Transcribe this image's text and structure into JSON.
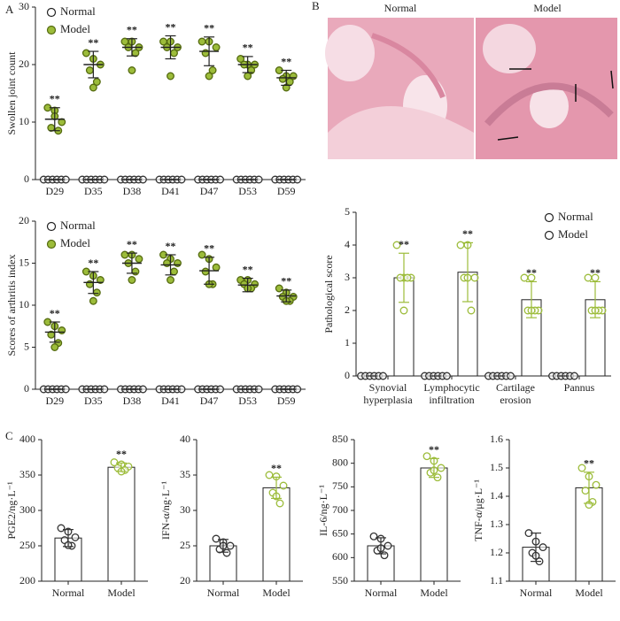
{
  "panel_labels": [
    "A",
    "B",
    "C"
  ],
  "histology": {
    "labels": [
      "Normal",
      "Model"
    ]
  },
  "chart_data": [
    {
      "type": "scatter",
      "ylabel": "Swollen joint count",
      "legend": "upper left",
      "annotation": "**",
      "categories": [
        "D29",
        "D35",
        "D38",
        "D41",
        "D47",
        "D53",
        "D59"
      ],
      "ylim": [
        0,
        30
      ],
      "yticks": [
        0,
        10,
        20,
        30
      ],
      "series": [
        {
          "name": "Normal",
          "color": "#333333",
          "filled": false,
          "values": [
            0,
            0,
            0,
            0,
            0,
            0,
            0
          ],
          "errors": [
            0,
            0,
            0,
            0,
            0,
            0,
            0
          ],
          "points": [
            [
              0,
              0,
              0,
              0,
              0,
              0
            ],
            [
              0,
              0,
              0,
              0,
              0,
              0
            ],
            [
              0,
              0,
              0,
              0,
              0,
              0
            ],
            [
              0,
              0,
              0,
              0,
              0,
              0
            ],
            [
              0,
              0,
              0,
              0,
              0,
              0
            ],
            [
              0,
              0,
              0,
              0,
              0,
              0
            ],
            [
              0,
              0,
              0,
              0,
              0,
              0
            ]
          ]
        },
        {
          "name": "Model",
          "color": "#9cbc3a",
          "filled": true,
          "values": [
            10.5,
            20,
            23,
            23,
            22.3,
            20,
            17.7
          ],
          "errors": [
            2,
            2.3,
            1.5,
            2,
            2.5,
            1.4,
            1.3
          ],
          "points": [
            [
              12.5,
              12,
              10,
              9,
              8.5,
              11
            ],
            [
              22,
              21,
              20,
              19,
              17,
              16
            ],
            [
              24,
              24,
              23,
              23,
              22,
              19
            ],
            [
              24,
              24,
              23,
              23,
              22,
              18
            ],
            [
              24,
              24,
              23,
              22,
              19,
              18
            ],
            [
              21,
              20,
              20,
              20,
              19,
              18
            ],
            [
              19,
              18,
              18,
              17.5,
              17,
              16
            ]
          ]
        }
      ]
    },
    {
      "type": "scatter",
      "ylabel": "Scores of arthritis index",
      "legend": "upper left",
      "annotation": "**",
      "categories": [
        "D29",
        "D35",
        "D38",
        "D41",
        "D47",
        "D53",
        "D59"
      ],
      "ylim": [
        0,
        20
      ],
      "yticks": [
        0,
        5,
        10,
        15,
        20
      ],
      "series": [
        {
          "name": "Normal",
          "color": "#333333",
          "filled": false,
          "values": [
            0,
            0,
            0,
            0,
            0,
            0,
            0
          ],
          "errors": [
            0,
            0,
            0,
            0,
            0,
            0,
            0
          ],
          "points": [
            [
              0,
              0,
              0,
              0,
              0,
              0
            ],
            [
              0,
              0,
              0,
              0,
              0,
              0
            ],
            [
              0,
              0,
              0,
              0,
              0,
              0
            ],
            [
              0,
              0,
              0,
              0,
              0,
              0
            ],
            [
              0,
              0,
              0,
              0,
              0,
              0
            ],
            [
              0,
              0,
              0,
              0,
              0,
              0
            ],
            [
              0,
              0,
              0,
              0,
              0,
              0
            ]
          ]
        },
        {
          "name": "Model",
          "color": "#9cbc3a",
          "filled": true,
          "values": [
            6.8,
            12.7,
            15,
            14.8,
            14.1,
            12.4,
            11.1
          ],
          "errors": [
            1.2,
            1.3,
            1.2,
            1.2,
            1.6,
            0.8,
            0.7
          ],
          "points": [
            [
              8,
              7.5,
              7,
              6.5,
              5.5,
              5
            ],
            [
              14,
              13.5,
              13,
              12.5,
              11.5,
              10.5
            ],
            [
              16,
              16,
              15.5,
              15,
              14,
              13
            ],
            [
              16,
              15.5,
              15,
              15,
              14,
              13
            ],
            [
              16,
              15.5,
              14.5,
              14,
              12.5,
              12.5
            ],
            [
              13,
              13,
              12.5,
              12.5,
              12,
              12
            ],
            [
              12,
              11.5,
              11,
              11,
              10.5,
              10.5
            ]
          ]
        }
      ]
    },
    {
      "type": "bar",
      "ylabel": "Pathological score",
      "legend": "upper right",
      "annotation": "**",
      "categories": [
        "Synovial hyperplasia",
        "Lymphocytic infiltration",
        "Cartilage erosion",
        "Pannus"
      ],
      "ylim": [
        0,
        5
      ],
      "yticks": [
        0,
        1,
        2,
        3,
        4,
        5
      ],
      "series": [
        {
          "name": "Normal",
          "color": "#333333",
          "filled": false,
          "values": [
            0,
            0,
            0,
            0
          ],
          "errors": [
            0,
            0,
            0,
            0
          ],
          "points": [
            [
              0,
              0,
              0,
              0,
              0,
              0
            ],
            [
              0,
              0,
              0,
              0,
              0,
              0
            ],
            [
              0,
              0,
              0,
              0,
              0,
              0
            ],
            [
              0,
              0,
              0,
              0,
              0,
              0
            ]
          ]
        },
        {
          "name": "Model",
          "color": "#9cbc3a",
          "filled": false,
          "values": [
            3,
            3.17,
            2.33,
            2.33
          ],
          "errors": [
            0.75,
            0.9,
            0.55,
            0.55
          ],
          "points": [
            [
              4,
              3,
              3,
              3,
              3,
              2
            ],
            [
              4,
              4,
              3,
              3,
              2,
              3
            ],
            [
              3,
              3,
              2,
              2,
              2,
              2
            ],
            [
              3,
              3,
              2,
              2,
              2,
              2
            ]
          ]
        }
      ]
    },
    {
      "type": "bar",
      "ylabel": "PGE2/ng·L⁻¹",
      "annotation": "**",
      "categories": [
        "Normal",
        "Model"
      ],
      "ylim": [
        200,
        400
      ],
      "yticks": [
        200,
        250,
        300,
        350,
        400
      ],
      "values": [
        261,
        361
      ],
      "errors": [
        12,
        6
      ],
      "colors": [
        "#333333",
        "#9cbc3a"
      ],
      "points": [
        [
          275,
          270,
          262,
          258,
          250,
          251
        ],
        [
          368,
          365,
          362,
          360,
          357,
          355
        ]
      ]
    },
    {
      "type": "bar",
      "ylabel": "IFN-α/ng·L⁻¹",
      "annotation": "**",
      "categories": [
        "Normal",
        "Model"
      ],
      "ylim": [
        20,
        40
      ],
      "yticks": [
        20,
        25,
        30,
        35,
        40
      ],
      "values": [
        25,
        33.2
      ],
      "errors": [
        0.9,
        1.5
      ],
      "colors": [
        "#333333",
        "#9cbc3a"
      ],
      "points": [
        [
          26,
          25.5,
          25,
          24.5,
          24,
          25
        ],
        [
          35,
          34.8,
          33.5,
          32.5,
          31,
          32
        ]
      ]
    },
    {
      "type": "bar",
      "ylabel": "IL-6/ng·L⁻¹",
      "annotation": "**",
      "categories": [
        "Normal",
        "Model"
      ],
      "ylim": [
        550,
        850
      ],
      "yticks": [
        550,
        600,
        650,
        700,
        750,
        800,
        850
      ],
      "values": [
        625,
        790
      ],
      "errors": [
        17,
        20
      ],
      "colors": [
        "#333333",
        "#9cbc3a"
      ],
      "points": [
        [
          645,
          640,
          625,
          615,
          605,
          620
        ],
        [
          815,
          805,
          790,
          780,
          770,
          785
        ]
      ]
    },
    {
      "type": "bar",
      "ylabel": "TNF-α/μg·L⁻¹",
      "annotation": "**",
      "categories": [
        "Normal",
        "Model"
      ],
      "ylim": [
        1.1,
        1.6
      ],
      "yticks": [
        1.1,
        1.2,
        1.3,
        1.4,
        1.5,
        1.6
      ],
      "values": [
        1.22,
        1.43
      ],
      "errors": [
        0.05,
        0.055
      ],
      "colors": [
        "#333333",
        "#9cbc3a"
      ],
      "points": [
        [
          1.27,
          1.24,
          1.22,
          1.2,
          1.17,
          1.19
        ],
        [
          1.5,
          1.47,
          1.44,
          1.42,
          1.38,
          1.37
        ]
      ]
    }
  ]
}
